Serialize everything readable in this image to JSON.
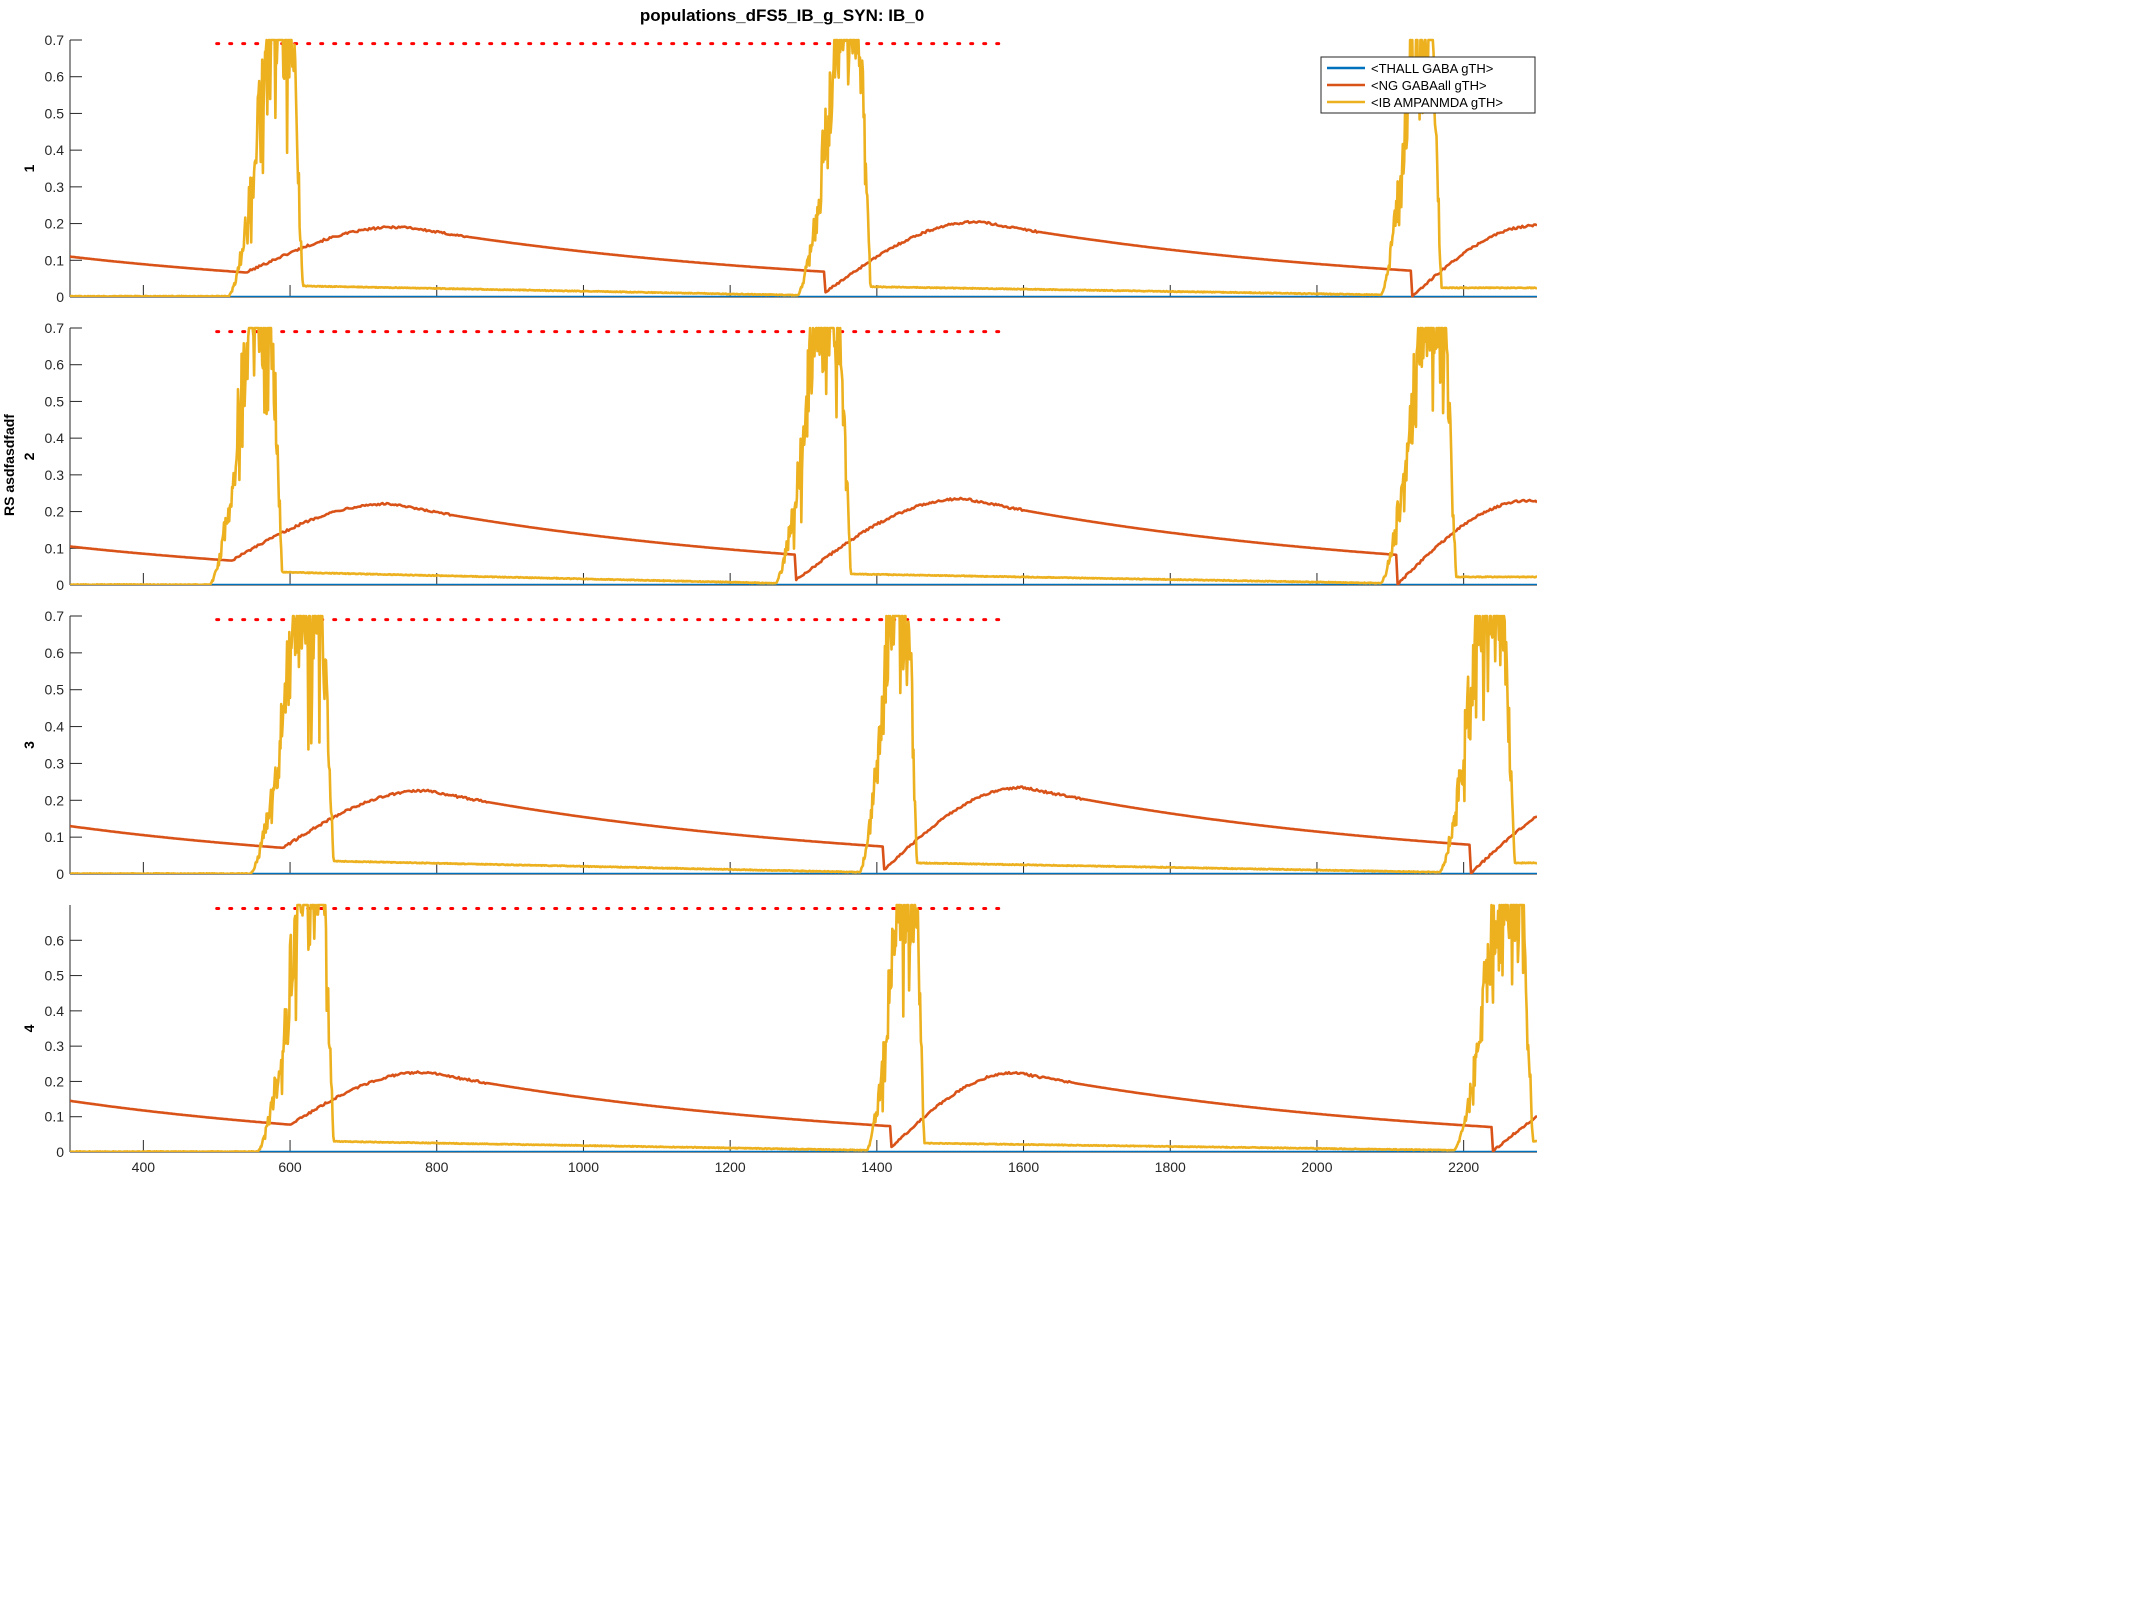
{
  "chart_data": {
    "type": "line",
    "title": "populations_dFS5_IB_g_SYN: IB_0",
    "ylabel": "RS asdfasdfadf",
    "xlim": [
      300,
      2300
    ],
    "ylim": [
      0,
      0.7
    ],
    "x_ticks": [
      400,
      600,
      800,
      1000,
      1200,
      1400,
      1600,
      1800,
      2000,
      2200
    ],
    "y_ticks": [
      0,
      0.1,
      0.2,
      0.3,
      0.4,
      0.5,
      0.6,
      0.7
    ],
    "panel4_y_ticks": [
      0,
      0.1,
      0.2,
      0.3,
      0.4,
      0.5,
      0.6
    ],
    "legend_position": "top-right",
    "colors": {
      "thall": "#0072BD",
      "ng": "#D95319",
      "ib": "#EDB120",
      "dots": "#FF0000"
    },
    "series": [
      {
        "name": "<THALL GABA gTH>",
        "color": "#0072BD"
      },
      {
        "name": "<NG GABAall gTH>",
        "color": "#D95319"
      },
      {
        "name": "<IB AMPANMDA gTH>",
        "color": "#EDB120"
      }
    ],
    "marker_line": {
      "y": 0.69,
      "x_start": 500,
      "x_end": 1580,
      "style": "dotted",
      "color": "#FF0000"
    },
    "panels": [
      {
        "label": "1",
        "ib_bursts": [
          {
            "x0": 515,
            "x1": 618,
            "peak": 0.7
          },
          {
            "x0": 1290,
            "x1": 1392,
            "peak": 0.7
          },
          {
            "x0": 2085,
            "x1": 2170,
            "peak": 0.7
          }
        ],
        "ib_baseline": [
          0.002,
          0.03,
          0.005,
          0.028,
          0.006,
          0.025
        ],
        "ng_start": 0.11,
        "ng_cycles": [
          {
            "x0": 540,
            "x_peak": 760,
            "peak": 0.19
          },
          {
            "x0": 1330,
            "x_peak": 1540,
            "peak": 0.205
          },
          {
            "x0": 2130,
            "x_peak": 2300,
            "peak": 0.195
          }
        ]
      },
      {
        "label": "2",
        "ib_bursts": [
          {
            "x0": 490,
            "x1": 590,
            "peak": 0.7
          },
          {
            "x0": 1260,
            "x1": 1365,
            "peak": 0.7
          },
          {
            "x0": 2085,
            "x1": 2190,
            "peak": 0.7
          }
        ],
        "ib_baseline": [
          0.001,
          0.035,
          0.005,
          0.03,
          0.005,
          0.022
        ],
        "ng_start": 0.105,
        "ng_cycles": [
          {
            "x0": 520,
            "x_peak": 740,
            "peak": 0.22
          },
          {
            "x0": 1290,
            "x_peak": 1520,
            "peak": 0.235
          },
          {
            "x0": 2110,
            "x_peak": 2290,
            "peak": 0.23
          }
        ]
      },
      {
        "label": "3",
        "ib_bursts": [
          {
            "x0": 545,
            "x1": 660,
            "peak": 0.7
          },
          {
            "x0": 1375,
            "x1": 1455,
            "peak": 0.7
          },
          {
            "x0": 2165,
            "x1": 2270,
            "peak": 0.7
          }
        ],
        "ib_baseline": [
          0.001,
          0.035,
          0.005,
          0.03,
          0.005,
          0.03
        ],
        "ng_start": 0.13,
        "ng_cycles": [
          {
            "x0": 590,
            "x_peak": 790,
            "peak": 0.225
          },
          {
            "x0": 1410,
            "x_peak": 1600,
            "peak": 0.235
          },
          {
            "x0": 2210,
            "x_peak": 2390,
            "peak": 0.22
          }
        ]
      },
      {
        "label": "4",
        "ib_bursts": [
          {
            "x0": 555,
            "x1": 660,
            "peak": 0.7
          },
          {
            "x0": 1385,
            "x1": 1465,
            "peak": 0.7
          },
          {
            "x0": 2185,
            "x1": 2295,
            "peak": 0.7
          }
        ],
        "ib_baseline": [
          0.001,
          0.03,
          0.005,
          0.025,
          0.005,
          0.03
        ],
        "ng_start": 0.145,
        "ng_cycles": [
          {
            "x0": 600,
            "x_peak": 790,
            "peak": 0.225
          },
          {
            "x0": 1420,
            "x_peak": 1590,
            "peak": 0.225
          },
          {
            "x0": 2240,
            "x_peak": 2420,
            "peak": 0.2
          }
        ]
      }
    ]
  }
}
